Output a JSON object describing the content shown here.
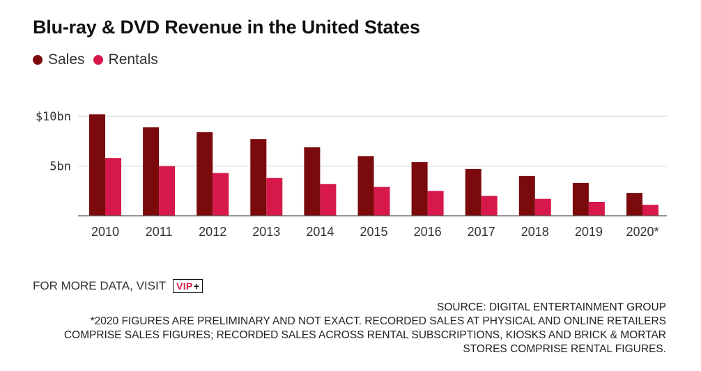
{
  "title": "Blu-ray & DVD Revenue in the United States",
  "legend": [
    {
      "label": "Sales",
      "color": "#7a0a0c"
    },
    {
      "label": "Rentals",
      "color": "#d6194a"
    }
  ],
  "footer": {
    "visit_text": "FOR MORE DATA, VISIT",
    "vip_label": "VIP",
    "vip_plus": "+",
    "source": "SOURCE: DIGITAL ENTERTAINMENT GROUP",
    "note_lines": [
      "*2020 FIGURES ARE PRELIMINARY AND NOT EXACT. RECORDED SALES AT PHYSICAL AND ONLINE RETAILERS",
      "COMPRISE SALES FIGURES; RECORDED SALES ACROSS RENTAL SUBSCRIPTIONS, KIOSKS AND BRICK & MORTAR",
      "STORES COMPRISE RENTAL FIGURES."
    ]
  },
  "chart_data": {
    "type": "bar",
    "title": "Blu-ray & DVD Revenue in the United States",
    "xlabel": "",
    "ylabel": "",
    "categories": [
      "2010",
      "2011",
      "2012",
      "2013",
      "2014",
      "2015",
      "2016",
      "2017",
      "2018",
      "2019",
      "2020*"
    ],
    "series": [
      {
        "name": "Sales",
        "color": "#7a0a0c",
        "values": [
          10.2,
          8.9,
          8.4,
          7.7,
          6.9,
          6.0,
          5.4,
          4.7,
          4.0,
          3.3,
          2.3
        ]
      },
      {
        "name": "Rentals",
        "color": "#d6194a",
        "values": [
          5.8,
          5.0,
          4.3,
          3.8,
          3.2,
          2.9,
          2.5,
          2.0,
          1.7,
          1.4,
          1.1
        ]
      }
    ],
    "ylim": [
      0,
      10.5
    ],
    "yticks": [
      {
        "value": 5,
        "label": "5bn"
      },
      {
        "value": 10,
        "label": "$10bn"
      }
    ],
    "grid": true,
    "legend_position": "top-left"
  }
}
